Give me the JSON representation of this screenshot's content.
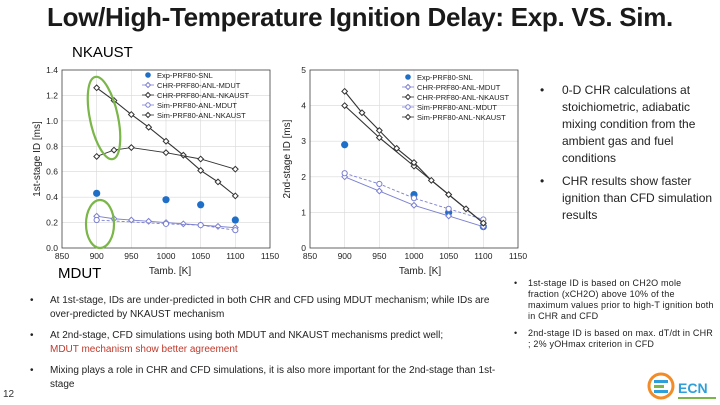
{
  "slide": {
    "title": "Low/High-Temperature Ignition Delay: Exp. VS. Sim.",
    "label_nkaust": "NKAUST",
    "label_mdut": "MDUT",
    "page_number": "12"
  },
  "bullets_right": [
    "0-D CHR calculations at stoichiometric, adiabatic mixing condition from the ambient gas and fuel conditions",
    "CHR results show faster ignition than CFD simulation results"
  ],
  "notes_right": [
    "1st-stage ID is based on CH2O mole fraction (xCH2O) above 10% of the maximum values prior to high-T ignition both in CHR and CFD",
    "2nd-stage ID is based on max. dT/dt in CHR ; 2% yOHmax criterion in CFD"
  ],
  "bullets_bottom": {
    "b1": "At 1st-stage, IDs are under-predicted in both CHR and CFD using MDUT mechanism; while IDs are over-predicted by NKAUST mechanism",
    "b2_part1": "At 2nd-stage, CFD simulations using both MDUT and NKAUST mechanisms predict well;",
    "b2_part2a": "MDUT mechanism show",
    "b2_part2b": "better agreement",
    "b3": "Mixing plays a role in CHR and CFD simulations, it is also more important for the 2nd-stage than 1st-stage"
  },
  "colors": {
    "exp": "#1f6fc8",
    "chr_mdut": "#7b7fd0",
    "chr_nkaust": "#333333",
    "highlight": "#7ab648",
    "text_red": "#c0392b"
  },
  "logo": {
    "text": "ECN"
  },
  "chart_data": [
    {
      "type": "scatter",
      "xlabel": "Tamb. [K]",
      "ylabel": "1st-stage ID [ms]",
      "xlim": [
        850,
        1150
      ],
      "ylim": [
        0,
        1.4
      ],
      "xticks": [
        850,
        900,
        950,
        1000,
        1050,
        1100,
        1150
      ],
      "yticks": [
        0,
        0.2,
        0.4,
        0.6,
        0.8,
        1.0,
        1.2,
        1.4
      ],
      "legend": [
        "Exp-PRF80-SNL",
        "CHR-PRF80-ANL-MDUT",
        "CHR-PRF80-ANL-NKAUST",
        "Sim-PRF80-ANL-MDUT",
        "Sim-PRF80-ANL-NKAUST"
      ],
      "series": [
        {
          "name": "Exp-PRF80-SNL",
          "x": [
            900,
            1000,
            1050,
            1100
          ],
          "y": [
            0.43,
            0.38,
            0.34,
            0.22
          ],
          "style": "dot"
        },
        {
          "name": "CHR-PRF80-ANL-MDUT",
          "x": [
            900,
            925,
            950,
            975,
            1000,
            1025,
            1050,
            1075,
            1100
          ],
          "y": [
            0.25,
            0.23,
            0.22,
            0.21,
            0.2,
            0.19,
            0.18,
            0.17,
            0.16
          ],
          "style": "hollow-diamond"
        },
        {
          "name": "CHR-PRF80-ANL-NKAUST",
          "x": [
            900,
            925,
            950,
            975,
            1000,
            1025,
            1050,
            1075,
            1100
          ],
          "y": [
            1.26,
            1.16,
            1.05,
            0.95,
            0.84,
            0.73,
            0.61,
            0.52,
            0.41
          ],
          "style": "diamond-line"
        },
        {
          "name": "Sim-PRF80-ANL-MDUT",
          "x": [
            900,
            1000,
            1050,
            1100
          ],
          "y": [
            0.22,
            0.19,
            0.18,
            0.14
          ],
          "style": "hollow-circle"
        },
        {
          "name": "Sim-PRF80-ANL-NKAUST",
          "x": [
            900,
            925,
            950,
            1000,
            1050,
            1100
          ],
          "y": [
            0.72,
            0.77,
            0.79,
            0.75,
            0.7,
            0.62
          ],
          "style": "hollow-diamond"
        }
      ]
    },
    {
      "type": "line",
      "xlabel": "Tamb. [K]",
      "ylabel": "2nd-stage ID [ms]",
      "xlim": [
        850,
        1150
      ],
      "ylim": [
        0,
        5
      ],
      "xticks": [
        850,
        900,
        950,
        1000,
        1050,
        1100,
        1150
      ],
      "yticks": [
        0,
        1,
        2,
        3,
        4,
        5
      ],
      "legend": [
        "Exp-PRF80-SNL",
        "CHR-PRF80-ANL-MDUT",
        "CHR-PRF80-ANL-NKAUST",
        "Sim-PRF80-ANL-MDUT",
        "Sim-PRF80-ANL-NKAUST"
      ],
      "series": [
        {
          "name": "Exp-PRF80-SNL",
          "x": [
            900,
            1000,
            1050,
            1100
          ],
          "y": [
            2.9,
            1.5,
            1.0,
            0.6
          ],
          "style": "dot"
        },
        {
          "name": "CHR-PRF80-ANL-MDUT",
          "x": [
            900,
            950,
            1000,
            1050,
            1100
          ],
          "y": [
            2.0,
            1.6,
            1.2,
            0.9,
            0.6
          ],
          "style": "hollow-diamond"
        },
        {
          "name": "CHR-PRF80-ANL-NKAUST",
          "x": [
            900,
            950,
            1000,
            1050,
            1100
          ],
          "y": [
            4.0,
            3.1,
            2.3,
            1.5,
            0.7
          ],
          "style": "diamond-line"
        },
        {
          "name": "Sim-PRF80-ANL-MDUT",
          "x": [
            900,
            950,
            1000,
            1050,
            1100
          ],
          "y": [
            2.1,
            1.8,
            1.4,
            1.1,
            0.8
          ],
          "style": "hollow-circle"
        },
        {
          "name": "Sim-PRF80-ANL-NKAUST",
          "x": [
            900,
            925,
            950,
            975,
            1000,
            1025,
            1050,
            1075,
            1100
          ],
          "y": [
            4.4,
            3.8,
            3.3,
            2.8,
            2.4,
            1.9,
            1.5,
            1.1,
            0.7
          ],
          "style": "diamond-line"
        }
      ]
    }
  ]
}
